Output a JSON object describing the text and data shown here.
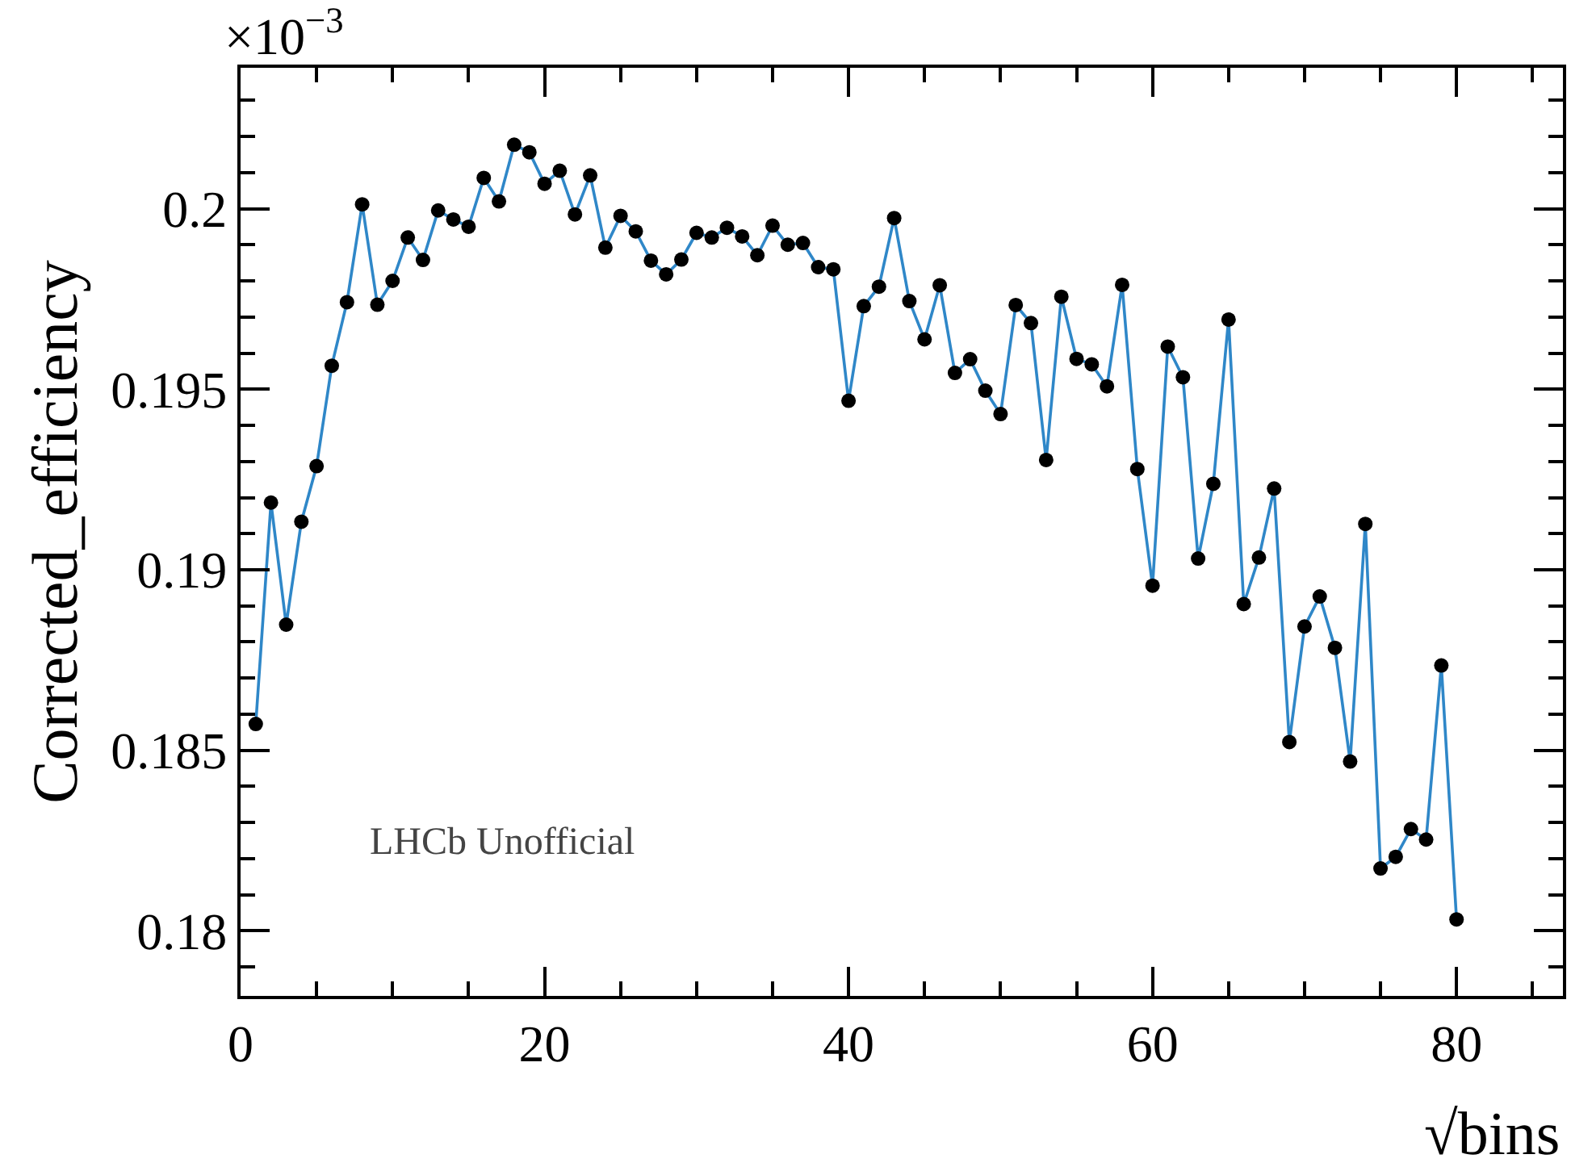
{
  "chart_data": {
    "type": "line",
    "xlabel": "√bins",
    "ylabel": "Corrected_efficiency",
    "annotations": [
      "×10$^{−3}$",
      "LHCb Unofficial"
    ],
    "x": [
      1,
      2,
      3,
      4,
      5,
      6,
      7,
      8,
      9,
      10,
      11,
      12,
      13,
      14,
      15,
      16,
      17,
      18,
      19,
      20,
      21,
      22,
      23,
      24,
      25,
      26,
      27,
      28,
      29,
      30,
      31,
      32,
      33,
      34,
      35,
      36,
      37,
      38,
      39,
      40,
      41,
      42,
      43,
      44,
      45,
      46,
      47,
      48,
      49,
      50,
      51,
      52,
      53,
      54,
      55,
      56,
      57,
      58,
      59,
      60,
      61,
      62,
      63,
      64,
      65,
      66,
      67,
      68,
      69,
      70,
      71,
      72,
      73,
      74,
      75,
      76,
      77,
      78,
      79,
      80
    ],
    "series": [
      {
        "color": "#2f87c8",
        "values": [
          0.18573,
          0.19186,
          0.18848,
          0.19133,
          0.19287,
          0.19565,
          0.19741,
          0.20012,
          0.19734,
          0.198,
          0.1992,
          0.19858,
          0.19995,
          0.1997,
          0.1995,
          0.20085,
          0.2002,
          0.20177,
          0.20156,
          0.20069,
          0.20105,
          0.19984,
          0.20092,
          0.19892,
          0.1998,
          0.19937,
          0.19856,
          0.19818,
          0.19859,
          0.19933,
          0.1992,
          0.19947,
          0.19923,
          0.19871,
          0.19953,
          0.199,
          0.19905,
          0.19838,
          0.19832,
          0.19468,
          0.1973,
          0.19784,
          0.19974,
          0.19744,
          0.19638,
          0.19788,
          0.19545,
          0.19583,
          0.19496,
          0.19431,
          0.19733,
          0.19683,
          0.19304,
          0.19756,
          0.19584,
          0.19569,
          0.19508,
          0.19789,
          0.19279,
          0.18956,
          0.19618,
          0.19533,
          0.19031,
          0.19238,
          0.19693,
          0.18905,
          0.19034,
          0.19225,
          0.18523,
          0.18843,
          0.18926,
          0.18784,
          0.18469,
          0.19127,
          0.18173,
          0.18205,
          0.18282,
          0.18253,
          0.18735,
          0.18032
        ]
      }
    ],
    "xlim": [
      0,
      87
    ],
    "xticks": [
      0,
      20,
      40,
      60,
      80
    ],
    "ylim": [
      0.1782,
      0.2039
    ],
    "yticks": [
      0.18,
      0.185,
      0.19,
      0.195,
      0.2
    ],
    "marker": "circle",
    "line_style": "solid",
    "grid": false
  }
}
